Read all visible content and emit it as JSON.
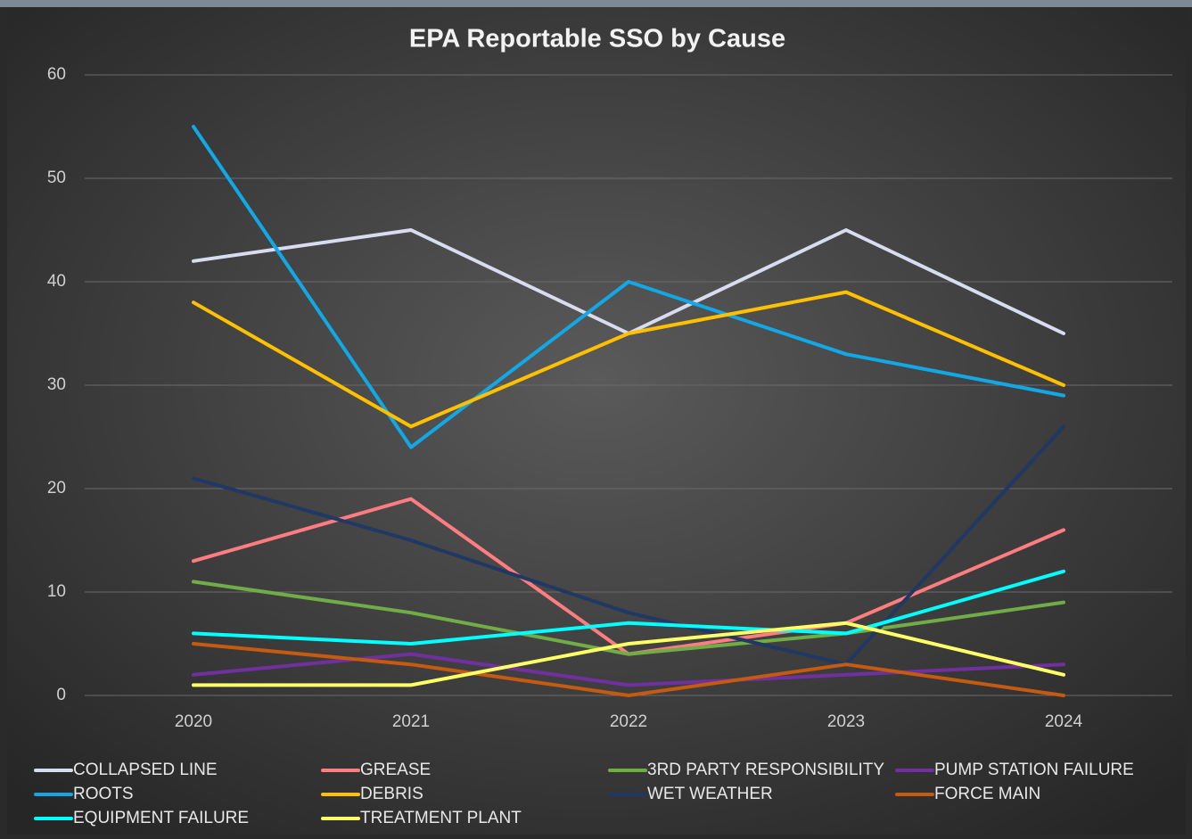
{
  "chart_data": {
    "type": "line",
    "title": "EPA Reportable SSO by Cause",
    "categories": [
      "2020",
      "2021",
      "2022",
      "2023",
      "2024"
    ],
    "series": [
      {
        "name": "COLLAPSED LINE",
        "color": "#d9dcf0",
        "values": [
          42,
          45,
          35,
          45,
          35
        ]
      },
      {
        "name": "GREASE",
        "color": "#ff7c80",
        "values": [
          13,
          19,
          4,
          7,
          16
        ]
      },
      {
        "name": "3RD PARTY RESPONSIBILITY",
        "color": "#70ad47",
        "values": [
          11,
          8,
          4,
          6,
          9
        ]
      },
      {
        "name": "PUMP STATION FAILURE",
        "color": "#7030a0",
        "values": [
          2,
          4,
          1,
          2,
          3
        ]
      },
      {
        "name": "ROOTS",
        "color": "#12a8e6",
        "values": [
          55,
          24,
          40,
          33,
          29
        ]
      },
      {
        "name": "DEBRIS",
        "color": "#ffc000",
        "values": [
          38,
          26,
          35,
          39,
          30
        ]
      },
      {
        "name": "WET WEATHER",
        "color": "#1f3864",
        "values": [
          21,
          15,
          8,
          3,
          26
        ]
      },
      {
        "name": "FORCE MAIN",
        "color": "#c55a11",
        "values": [
          5,
          3,
          0,
          3,
          0
        ]
      },
      {
        "name": "EQUIPMENT FAILURE",
        "color": "#00ffff",
        "values": [
          6,
          5,
          7,
          6,
          12
        ]
      },
      {
        "name": "TREATMENT PLANT",
        "color": "#ffff66",
        "values": [
          1,
          1,
          5,
          7,
          2
        ]
      }
    ],
    "ylim": [
      0,
      60
    ],
    "yticks": [
      0,
      10,
      20,
      30,
      40,
      50,
      60
    ],
    "grid": true,
    "legend": "bottom"
  }
}
